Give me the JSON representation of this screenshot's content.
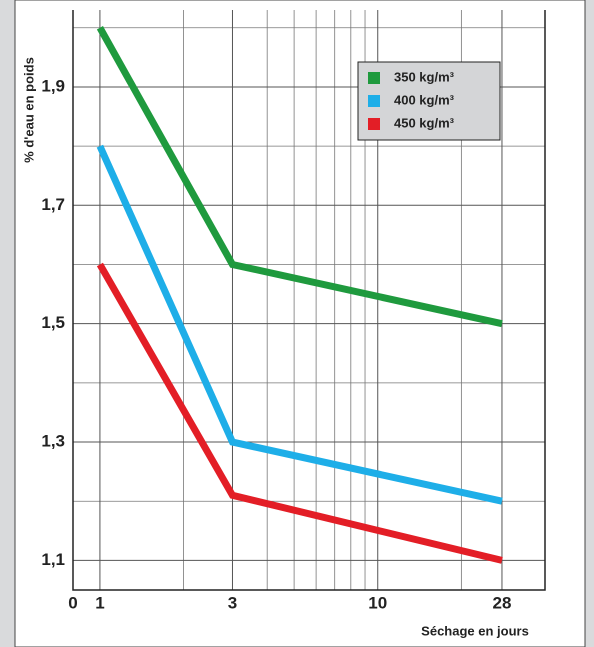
{
  "chart_data": {
    "type": "line",
    "y_label": "% d'eau en poids",
    "x_label": "Séchage en jours",
    "origin_label": "0",
    "x": [
      1,
      3,
      28
    ],
    "series": [
      {
        "name": "350 kg/m³",
        "color": "#1f9a3e",
        "values": [
          2.0,
          1.6,
          1.5
        ]
      },
      {
        "name": "400 kg/m³",
        "color": "#1eaee8",
        "values": [
          1.8,
          1.3,
          1.2
        ]
      },
      {
        "name": "450 kg/m³",
        "color": "#e31e26",
        "values": [
          1.6,
          1.21,
          1.1
        ]
      }
    ],
    "xscale": "log",
    "xlim": [
      0.8,
      40
    ],
    "xticks": [
      1,
      3,
      10,
      28
    ],
    "x_minor_ticks": [
      2,
      4,
      5,
      6,
      7,
      8,
      9,
      20
    ],
    "ylim": [
      1.05,
      2.03
    ],
    "yticks": [
      {
        "value": 1.1,
        "label": "1,1"
      },
      {
        "value": 1.3,
        "label": "1,3"
      },
      {
        "value": 1.5,
        "label": "1,5"
      },
      {
        "value": 1.7,
        "label": "1,7"
      },
      {
        "value": 1.9,
        "label": "1,9"
      }
    ],
    "y_minor_ticks": [
      1.2,
      1.4,
      1.6,
      1.8,
      2.0
    ],
    "grid": true,
    "legend": "upper right"
  }
}
